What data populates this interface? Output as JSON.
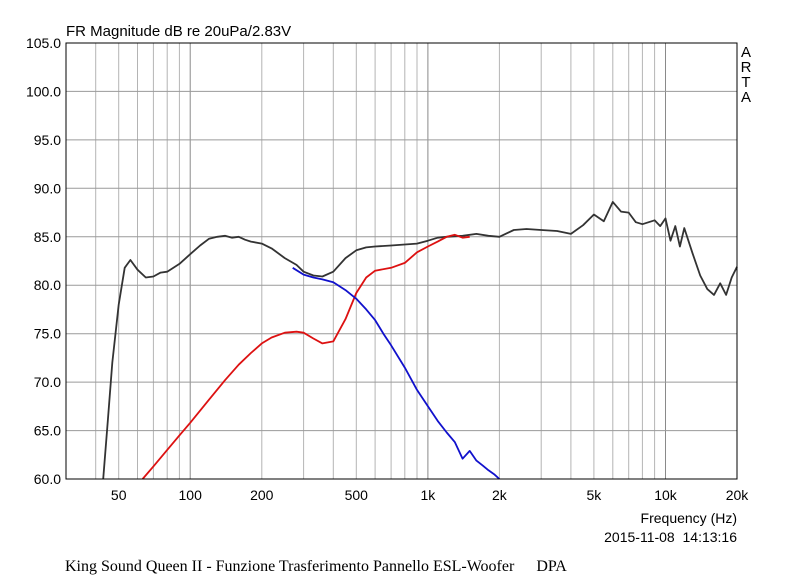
{
  "chart_data": {
    "type": "line",
    "title": "FR Magnitude dB re 20uPa/2.83V",
    "xlabel": "Frequency (Hz)",
    "ylabel": "",
    "x_scale": "log",
    "xlim": [
      30,
      20000
    ],
    "ylim": [
      60,
      105
    ],
    "grid": true,
    "x_ticks": [
      50,
      100,
      200,
      500,
      1000,
      2000,
      5000,
      10000,
      20000
    ],
    "x_tick_labels": [
      "50",
      "100",
      "200",
      "500",
      "1k",
      "2k",
      "5k",
      "10k",
      "20k"
    ],
    "y_ticks": [
      60,
      65,
      70,
      75,
      80,
      85,
      90,
      95,
      100,
      105
    ],
    "y_tick_labels": [
      "60.0",
      "65.0",
      "70.0",
      "75.0",
      "80.0",
      "85.0",
      "90.0",
      "95.0",
      "100.0",
      "105.0"
    ],
    "side_label": [
      "A",
      "R",
      "T",
      "A"
    ],
    "timestamp": "2015-11-08  14:13:16",
    "series": [
      {
        "color": "#333333",
        "x": [
          43,
          45,
          47,
          50,
          53,
          56,
          60,
          65,
          70,
          75,
          80,
          90,
          100,
          110,
          120,
          130,
          140,
          150,
          160,
          170,
          180,
          200,
          220,
          250,
          280,
          300,
          330,
          360,
          400,
          450,
          500,
          550,
          600,
          700,
          800,
          900,
          1000,
          1100,
          1200,
          1400,
          1600,
          1800,
          2000,
          2300,
          2600,
          3000,
          3500,
          4000,
          4500,
          5000,
          5500,
          6000,
          6500,
          7000,
          7500,
          8000,
          8500,
          9000,
          9500,
          10000,
          10500,
          11000,
          11500,
          12000,
          13000,
          14000,
          15000,
          16000,
          17000,
          18000,
          19000,
          20000
        ],
        "y": [
          60,
          66,
          72,
          78,
          81.8,
          82.6,
          81.6,
          80.8,
          80.9,
          81.3,
          81.4,
          82.2,
          83.2,
          84.1,
          84.8,
          85.0,
          85.1,
          84.9,
          85.0,
          84.7,
          84.5,
          84.3,
          83.8,
          82.8,
          82.1,
          81.4,
          81.0,
          80.9,
          81.4,
          82.8,
          83.6,
          83.9,
          84.0,
          84.1,
          84.2,
          84.3,
          84.6,
          84.9,
          85.0,
          85.1,
          85.3,
          85.1,
          85.0,
          85.7,
          85.8,
          85.7,
          85.6,
          85.3,
          86.2,
          87.3,
          86.6,
          88.6,
          87.6,
          87.5,
          86.5,
          86.3,
          86.5,
          86.7,
          86.1,
          86.9,
          84.6,
          86.1,
          84.0,
          85.9,
          83.3,
          81.0,
          79.6,
          79.0,
          80.2,
          79.0,
          80.8,
          81.9
        ]
      },
      {
        "color": "#dd1111",
        "x": [
          63,
          70,
          80,
          90,
          100,
          120,
          140,
          160,
          180,
          200,
          220,
          250,
          280,
          300,
          330,
          360,
          400,
          450,
          500,
          550,
          600,
          700,
          800,
          900,
          1000,
          1100,
          1200,
          1300,
          1400,
          1500
        ],
        "y": [
          60,
          61.3,
          63,
          64.5,
          65.8,
          68.2,
          70.2,
          71.8,
          73.0,
          74.0,
          74.6,
          75.1,
          75.2,
          75.1,
          74.5,
          74.0,
          74.2,
          76.5,
          79.2,
          80.8,
          81.5,
          81.8,
          82.3,
          83.4,
          84.0,
          84.5,
          85.0,
          85.2,
          84.9,
          85.0
        ]
      },
      {
        "color": "#1111cc",
        "x": [
          270,
          300,
          330,
          360,
          400,
          450,
          500,
          550,
          600,
          650,
          700,
          800,
          900,
          1000,
          1100,
          1200,
          1300,
          1400,
          1500,
          1600,
          1700,
          1800,
          1900,
          2000
        ],
        "y": [
          81.8,
          81.1,
          80.8,
          80.6,
          80.3,
          79.5,
          78.6,
          77.5,
          76.4,
          75.0,
          73.8,
          71.5,
          69.2,
          67.5,
          66.0,
          64.8,
          63.8,
          62.1,
          62.9,
          61.9,
          61.4,
          60.9,
          60.5,
          60.0
        ]
      }
    ]
  },
  "caption": {
    "text": "King Sound Queen II - Funzione Trasferimento Pannello ESL-Woofer",
    "tag": "DPA"
  }
}
